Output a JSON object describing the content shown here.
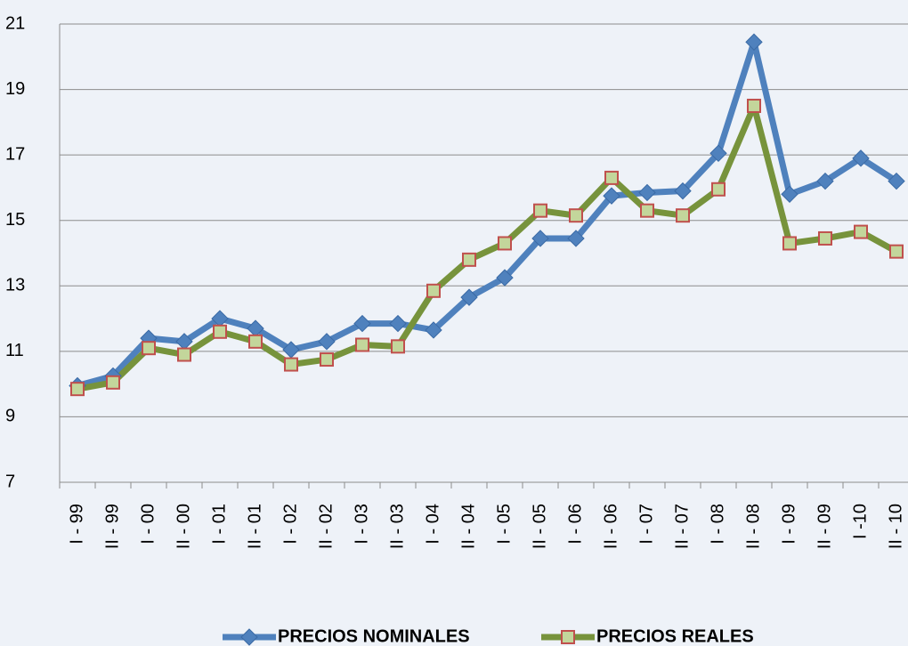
{
  "chart_data": {
    "type": "line",
    "categories": [
      "I - 99",
      "II - 99",
      "I - 00",
      "II - 00",
      "I - 01",
      "II - 01",
      "I - 02",
      "II - 02",
      "I - 03",
      "II - 03",
      "I - 04",
      "II - 04",
      "I - 05",
      "II - 05",
      "I - 06",
      "II - 06",
      "I - 07",
      "II - 07",
      "I - 08",
      "II - 08",
      "I - 09",
      "II - 09",
      "I -10",
      "II - 10"
    ],
    "series": [
      {
        "name": "PRECIOS NOMINALES",
        "color": "#4f81bd",
        "marker": "diamond",
        "marker_fill": "#4f81bd",
        "marker_stroke": "#3a6aa5",
        "values": [
          9.95,
          10.25,
          11.4,
          11.3,
          12.0,
          11.7,
          11.05,
          11.3,
          11.85,
          11.85,
          11.65,
          12.65,
          13.25,
          14.45,
          14.45,
          15.75,
          15.85,
          15.9,
          17.05,
          20.45,
          15.8,
          16.2,
          16.9,
          16.2
        ]
      },
      {
        "name": "PRECIOS REALES",
        "color": "#77933c",
        "marker": "square",
        "marker_fill": "#c3d69b",
        "marker_stroke": "#c0504d",
        "values": [
          9.85,
          10.05,
          11.1,
          10.9,
          11.6,
          11.3,
          10.6,
          10.75,
          11.2,
          11.15,
          12.85,
          13.8,
          14.3,
          15.3,
          15.15,
          16.3,
          15.3,
          15.15,
          15.95,
          18.5,
          14.3,
          14.45,
          14.65,
          14.05
        ]
      }
    ],
    "ylim": [
      7,
      21
    ],
    "yticks": [
      7,
      9,
      11,
      13,
      15,
      17,
      19,
      21
    ],
    "grid": true,
    "legend": "bottom"
  }
}
